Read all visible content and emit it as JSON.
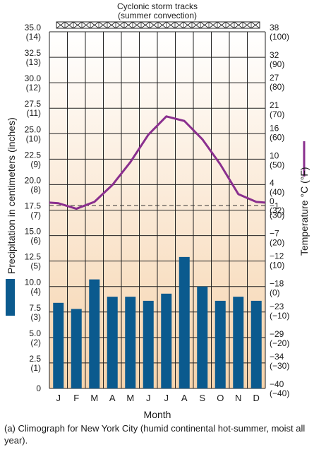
{
  "caption": "(a) Climograph for New York City (humid continental hot-summer, moist all year).",
  "chart_data": {
    "type": "bar+line",
    "top_label_line1": "Cyclonic storm tracks",
    "top_label_line2": "(summer convection)",
    "xlabel": "Month",
    "categories": [
      "J",
      "F",
      "M",
      "A",
      "M",
      "J",
      "J",
      "A",
      "S",
      "O",
      "N",
      "D"
    ],
    "left_axis": {
      "label": "Precipitation in centimeters (inches)",
      "ylim": [
        0,
        35
      ],
      "ticks": [
        {
          "cm": "0",
          "in": ""
        },
        {
          "cm": "2.5",
          "in": "(1)"
        },
        {
          "cm": "5.0",
          "in": "(2)"
        },
        {
          "cm": "7.5",
          "in": "(3)"
        },
        {
          "cm": "10.0",
          "in": "(4)"
        },
        {
          "cm": "12.5",
          "in": "(5)"
        },
        {
          "cm": "15.0",
          "in": "(6)"
        },
        {
          "cm": "17.5",
          "in": "(7)"
        },
        {
          "cm": "20.0",
          "in": "(8)"
        },
        {
          "cm": "22.5",
          "in": "(9)"
        },
        {
          "cm": "25.0",
          "in": "(10)"
        },
        {
          "cm": "27.5",
          "in": "(11)"
        },
        {
          "cm": "30.0",
          "in": "(12)"
        },
        {
          "cm": "32.5",
          "in": "(13)"
        },
        {
          "cm": "35.0",
          "in": "(14)"
        }
      ]
    },
    "right_axis": {
      "label": "Temperature °C (°F)",
      "ylim": [
        -40,
        38
      ],
      "ticks": [
        {
          "c": "−40",
          "f": "(−40)"
        },
        {
          "c": "−34",
          "f": "(−30)"
        },
        {
          "c": "−29",
          "f": "(−20)"
        },
        {
          "c": "−23",
          "f": "(−10)"
        },
        {
          "c": "−18",
          "f": "(0)"
        },
        {
          "c": "−12",
          "f": "(10)"
        },
        {
          "c": "−7",
          "f": "(20)"
        },
        {
          "c": "−1",
          "f": "(30)"
        },
        {
          "c": "0",
          "f": "(32)"
        },
        {
          "c": "4",
          "f": "(40)"
        },
        {
          "c": "10",
          "f": "(50)"
        },
        {
          "c": "16",
          "f": "(60)"
        },
        {
          "c": "21",
          "f": "(70)"
        },
        {
          "c": "27",
          "f": "(80)"
        },
        {
          "c": "32",
          "f": "(90)"
        },
        {
          "c": "38",
          "f": "(100)"
        }
      ],
      "freezing_line_c": 0
    },
    "series": [
      {
        "kind": "bar",
        "axis": "left",
        "color": "#0b5a8e",
        "values": [
          8.4,
          7.8,
          10.7,
          9.0,
          9.0,
          8.6,
          9.3,
          12.9,
          10.0,
          8.6,
          9.0,
          8.6
        ]
      },
      {
        "kind": "line",
        "axis": "right",
        "color": "#8a2f8e",
        "values": [
          0.5,
          -0.7,
          0.8,
          4.5,
          9.5,
          15.5,
          19.5,
          18.5,
          14.5,
          9.0,
          2.5,
          0.8
        ]
      }
    ]
  },
  "colors": {
    "background_top": "#ffffff",
    "background_bottom": "#f6d3ac",
    "grid": "#222222",
    "bars": "#0b5a8e",
    "temperature_line": "#8a2f8e"
  }
}
